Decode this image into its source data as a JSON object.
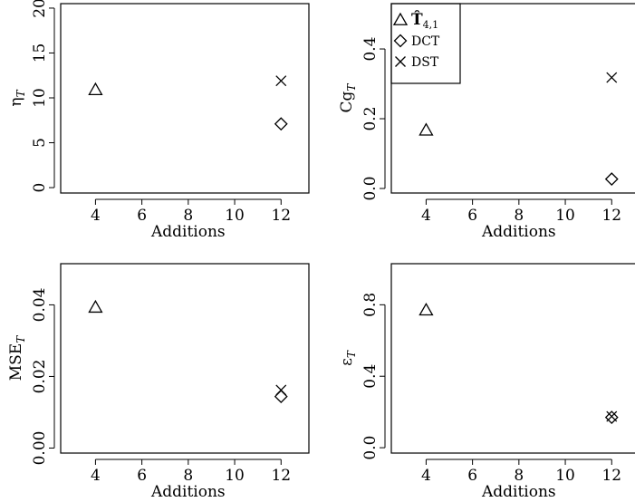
{
  "chart_data": [
    {
      "type": "scatter",
      "xlabel": "Additions",
      "ylabel": "ηT",
      "xticks": [
        4,
        6,
        8,
        10,
        12
      ],
      "yticks": [
        0,
        5,
        10,
        15,
        20
      ],
      "xlim": [
        2.5,
        13.2
      ],
      "ylim": [
        -0.6,
        20.5
      ],
      "series": [
        {
          "name": "T̂4,1",
          "marker": "triangle",
          "x": [
            4
          ],
          "y": [
            10.9
          ]
        },
        {
          "name": "DCT",
          "marker": "diamond",
          "x": [
            12
          ],
          "y": [
            7.1
          ]
        },
        {
          "name": "DST",
          "marker": "cross",
          "x": [
            12
          ],
          "y": [
            11.9
          ]
        }
      ]
    },
    {
      "type": "scatter",
      "xlabel": "Additions",
      "ylabel": "CgT",
      "xticks": [
        4,
        6,
        8,
        10,
        12
      ],
      "yticks": [
        0.0,
        0.2,
        0.4
      ],
      "ytick_labels": [
        "0.0",
        "0.2",
        "0.4"
      ],
      "xlim": [
        2.5,
        13.2
      ],
      "ylim": [
        -0.013,
        0.53
      ],
      "legend": {
        "position": "top-left",
        "entries": [
          {
            "marker": "triangle",
            "label_main": "T̂",
            "label_sub": "4,1"
          },
          {
            "marker": "diamond",
            "label_main": "DCT",
            "label_sub": ""
          },
          {
            "marker": "cross",
            "label_main": "DST",
            "label_sub": ""
          }
        ]
      },
      "series": [
        {
          "name": "T̂4,1",
          "marker": "triangle",
          "x": [
            4
          ],
          "y": [
            0.167
          ]
        },
        {
          "name": "DCT",
          "marker": "diamond",
          "x": [
            12
          ],
          "y": [
            0.027
          ]
        },
        {
          "name": "DST",
          "marker": "cross",
          "x": [
            12
          ],
          "y": [
            0.318
          ]
        }
      ]
    },
    {
      "type": "scatter",
      "xlabel": "Additions",
      "ylabel": "MSET",
      "xticks": [
        4,
        6,
        8,
        10,
        12
      ],
      "yticks": [
        0.0,
        0.02,
        0.04
      ],
      "ytick_labels": [
        "0.00",
        "0.02",
        "0.04"
      ],
      "xlim": [
        2.5,
        13.2
      ],
      "ylim": [
        -0.0014,
        0.0515
      ],
      "series": [
        {
          "name": "T̂4,1",
          "marker": "triangle",
          "x": [
            4
          ],
          "y": [
            0.0393
          ]
        },
        {
          "name": "DCT",
          "marker": "diamond",
          "x": [
            12
          ],
          "y": [
            0.0144
          ]
        },
        {
          "name": "DST",
          "marker": "cross",
          "x": [
            12
          ],
          "y": [
            0.0162
          ]
        }
      ]
    },
    {
      "type": "scatter",
      "xlabel": "Additions",
      "ylabel": "εT",
      "xticks": [
        4,
        6,
        8,
        10,
        12
      ],
      "yticks": [
        0.0,
        0.4,
        0.8
      ],
      "ytick_labels": [
        "0.0",
        "0.4",
        "0.8"
      ],
      "xlim": [
        2.5,
        13.2
      ],
      "ylim": [
        -0.03,
        1.03
      ],
      "series": [
        {
          "name": "T̂4,1",
          "marker": "triangle",
          "x": [
            4
          ],
          "y": [
            0.77
          ]
        },
        {
          "name": "DCT",
          "marker": "diamond",
          "x": [
            12
          ],
          "y": [
            0.17
          ]
        },
        {
          "name": "DST",
          "marker": "cross",
          "x": [
            12
          ],
          "y": [
            0.175
          ]
        }
      ]
    }
  ]
}
